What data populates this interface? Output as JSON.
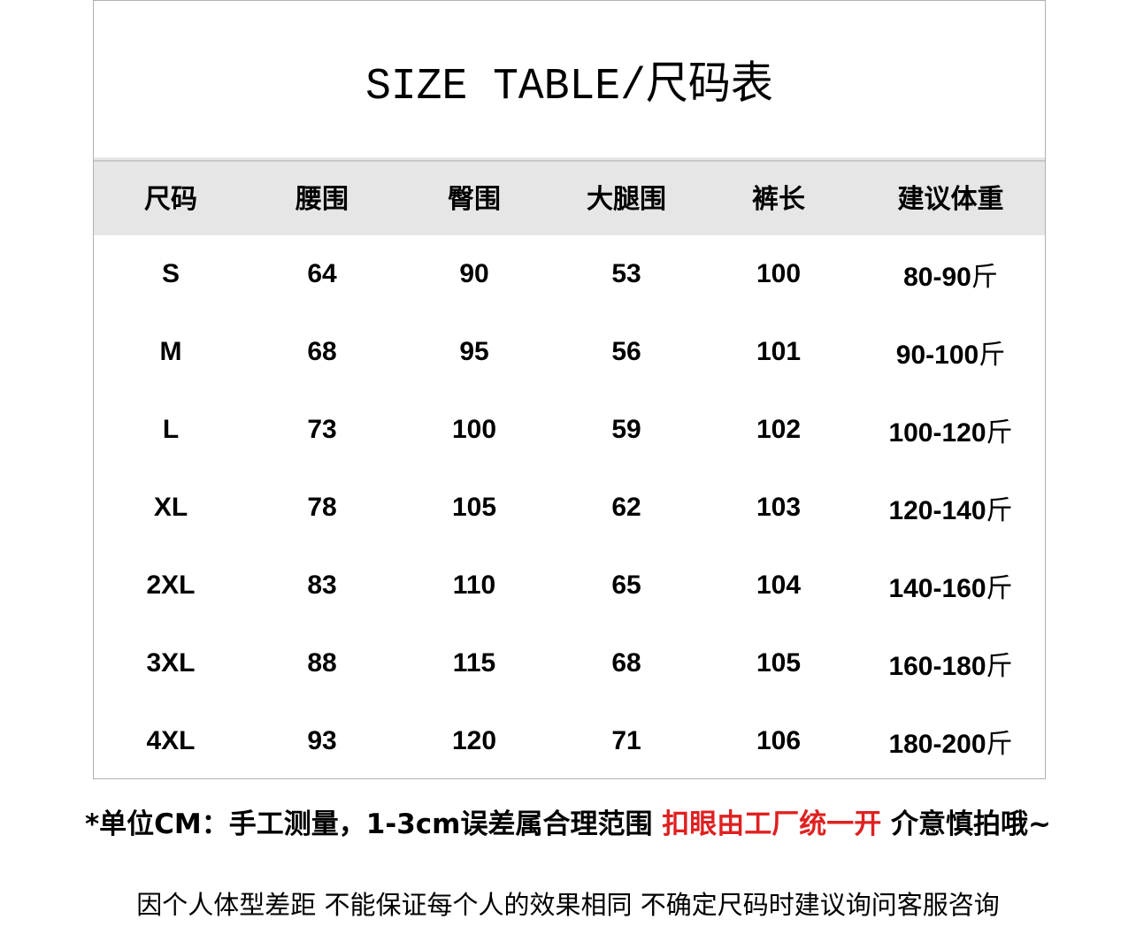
{
  "title": "SIZE TABLE/尺码表",
  "table": {
    "headers": [
      "尺码",
      "腰围",
      "臀围",
      "大腿围",
      "裤长",
      "建议体重"
    ],
    "weight_unit": "斤",
    "rows": [
      [
        "S",
        "64",
        "90",
        "53",
        "100",
        "80-90"
      ],
      [
        "M",
        "68",
        "95",
        "56",
        "101",
        "90-100"
      ],
      [
        "L",
        "73",
        "100",
        "59",
        "102",
        "100-120"
      ],
      [
        "XL",
        "78",
        "105",
        "62",
        "103",
        "120-140"
      ],
      [
        "2XL",
        "83",
        "110",
        "65",
        "104",
        "140-160"
      ],
      [
        "3XL",
        "88",
        "115",
        "68",
        "105",
        "160-180"
      ],
      [
        "4XL",
        "93",
        "120",
        "71",
        "106",
        "180-200"
      ]
    ]
  },
  "notes": {
    "line1_part1": "*单位CM：手工测量，1-3cm误差属合理范围 ",
    "line1_red": "扣眼由工厂统一开",
    "line1_part2": " 介意慎拍哦~",
    "line2": "因个人体型差距 不能保证每个人的效果相同 不确定尺码时建议询问客服咨询"
  },
  "colors": {
    "header_bg": "#e6e6e6",
    "highlight": "#e02020"
  }
}
